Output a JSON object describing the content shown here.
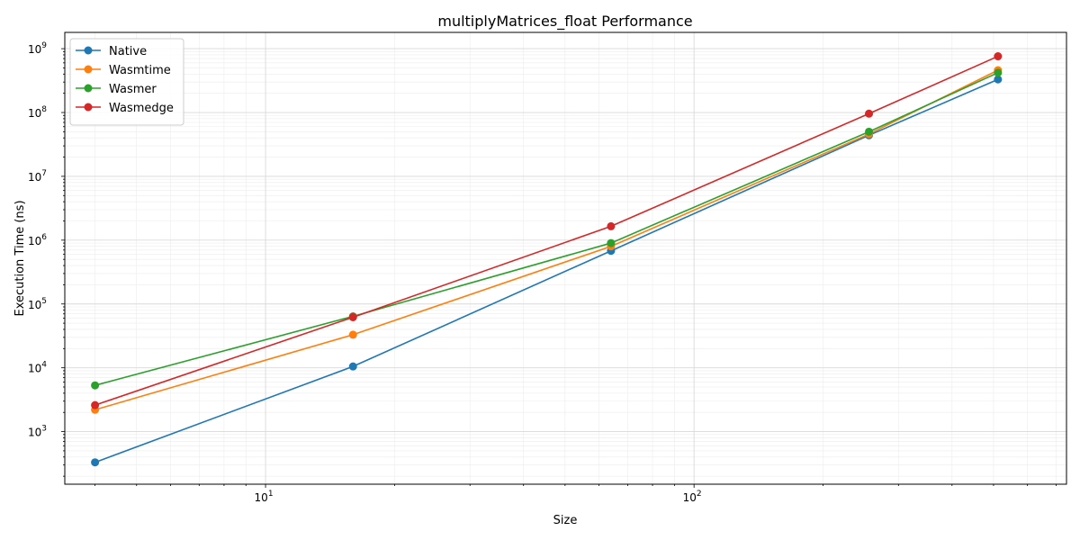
{
  "chart_data": {
    "type": "line",
    "title": "multiplyMatrices_float Performance",
    "xlabel": "Size",
    "ylabel": "Execution Time (ns)",
    "xscale": "log",
    "yscale": "log",
    "xlim": [
      3.4,
      740
    ],
    "ylim": [
      150,
      1800000000
    ],
    "grid": true,
    "legend": "top-left",
    "x": [
      4,
      16,
      64,
      256,
      512
    ],
    "x_ticks": [
      {
        "value": 10,
        "base": "10",
        "exp": "1"
      },
      {
        "value": 100,
        "base": "10",
        "exp": "2"
      }
    ],
    "y_ticks": [
      {
        "value": 1000,
        "base": "10",
        "exp": "3"
      },
      {
        "value": 10000,
        "base": "10",
        "exp": "4"
      },
      {
        "value": 100000,
        "base": "10",
        "exp": "5"
      },
      {
        "value": 1000000,
        "base": "10",
        "exp": "6"
      },
      {
        "value": 10000000,
        "base": "10",
        "exp": "7"
      },
      {
        "value": 100000000,
        "base": "10",
        "exp": "8"
      },
      {
        "value": 1000000000,
        "base": "10",
        "exp": "9"
      }
    ],
    "series": [
      {
        "name": "Native",
        "color": "#1f77b4",
        "values": [
          330,
          10500,
          680000,
          44000000,
          330000000
        ]
      },
      {
        "name": "Wasmtime",
        "color": "#ff7f0e",
        "values": [
          2200,
          33000,
          800000,
          46000000,
          460000000
        ]
      },
      {
        "name": "Wasmer",
        "color": "#2ca02c",
        "values": [
          5300,
          64000,
          900000,
          50000000,
          420000000
        ]
      },
      {
        "name": "Wasmedge",
        "color": "#d62728",
        "values": [
          2600,
          62000,
          1650000,
          96000000,
          760000000
        ]
      }
    ]
  }
}
